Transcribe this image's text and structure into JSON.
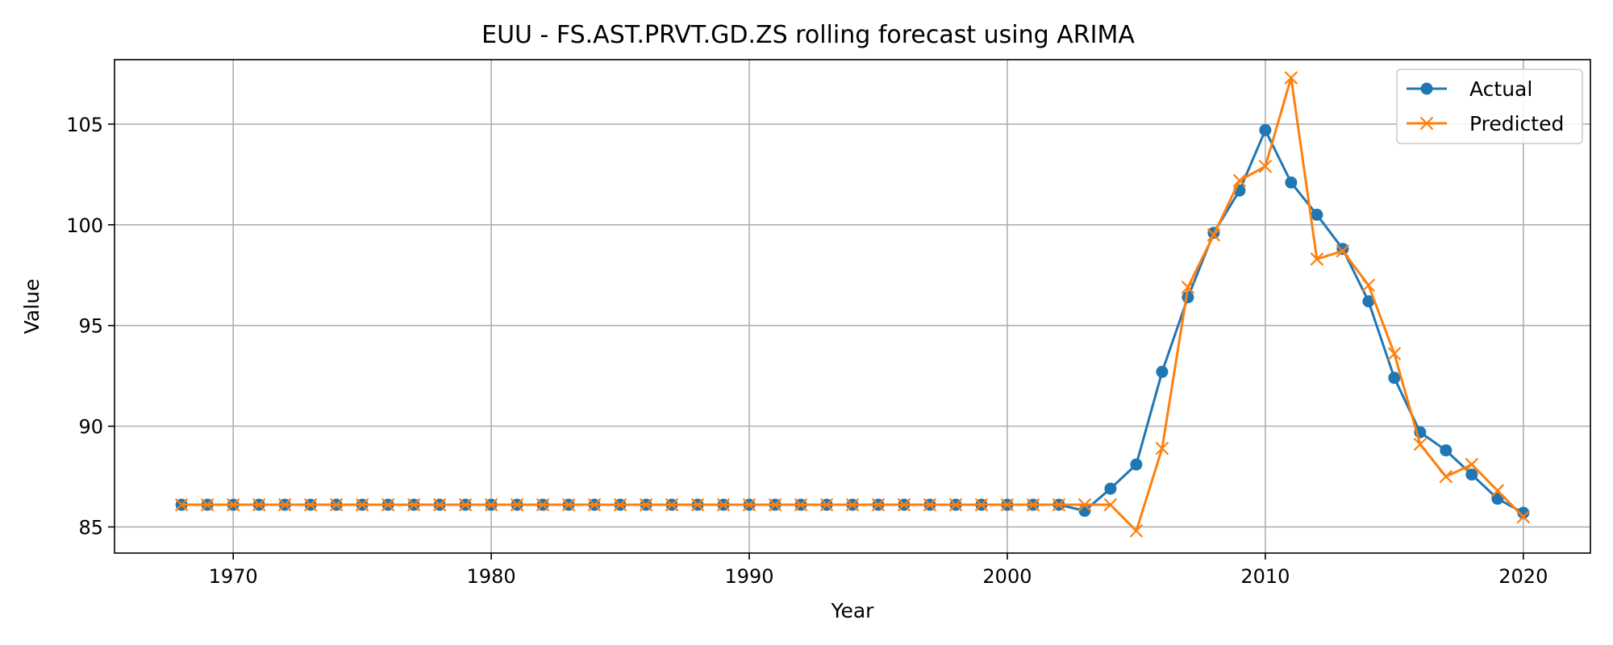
{
  "chart_data": {
    "type": "line",
    "title": "EUU - FS.AST.PRVT.GD.ZS rolling forecast using ARIMA",
    "xlabel": "Year",
    "ylabel": "Value",
    "xlim": [
      1965.4,
      2022.6
    ],
    "ylim": [
      83.7,
      108.2
    ],
    "xticks": [
      1970,
      1980,
      1990,
      2000,
      2010,
      2020
    ],
    "yticks": [
      85,
      90,
      95,
      100,
      105
    ],
    "grid": true,
    "legend_position": "top-right",
    "x": [
      1968,
      1969,
      1970,
      1971,
      1972,
      1973,
      1974,
      1975,
      1976,
      1977,
      1978,
      1979,
      1980,
      1981,
      1982,
      1983,
      1984,
      1985,
      1986,
      1987,
      1988,
      1989,
      1990,
      1991,
      1992,
      1993,
      1994,
      1995,
      1996,
      1997,
      1998,
      1999,
      2000,
      2001,
      2002,
      2003,
      2004,
      2005,
      2006,
      2007,
      2008,
      2009,
      2010,
      2011,
      2012,
      2013,
      2014,
      2015,
      2016,
      2017,
      2018,
      2019,
      2020
    ],
    "series": [
      {
        "name": "Actual",
        "color": "#1f77b4",
        "marker": "circle",
        "values": [
          86.1,
          86.1,
          86.1,
          86.1,
          86.1,
          86.1,
          86.1,
          86.1,
          86.1,
          86.1,
          86.1,
          86.1,
          86.1,
          86.1,
          86.1,
          86.1,
          86.1,
          86.1,
          86.1,
          86.1,
          86.1,
          86.1,
          86.1,
          86.1,
          86.1,
          86.1,
          86.1,
          86.1,
          86.1,
          86.1,
          86.1,
          86.1,
          86.1,
          86.1,
          86.1,
          85.8,
          86.9,
          88.1,
          92.7,
          96.4,
          99.6,
          101.7,
          104.7,
          102.1,
          100.5,
          98.8,
          96.2,
          92.4,
          89.7,
          88.8,
          87.6,
          86.4,
          85.7
        ]
      },
      {
        "name": "Predicted",
        "color": "#ff7f0e",
        "marker": "x",
        "values": [
          86.1,
          86.1,
          86.1,
          86.1,
          86.1,
          86.1,
          86.1,
          86.1,
          86.1,
          86.1,
          86.1,
          86.1,
          86.1,
          86.1,
          86.1,
          86.1,
          86.1,
          86.1,
          86.1,
          86.1,
          86.1,
          86.1,
          86.1,
          86.1,
          86.1,
          86.1,
          86.1,
          86.1,
          86.1,
          86.1,
          86.1,
          86.1,
          86.1,
          86.1,
          86.1,
          86.1,
          86.1,
          84.8,
          88.9,
          96.9,
          99.5,
          102.2,
          102.9,
          107.3,
          98.3,
          98.7,
          97.0,
          93.6,
          89.1,
          87.5,
          88.1,
          86.8,
          85.5
        ]
      }
    ]
  }
}
